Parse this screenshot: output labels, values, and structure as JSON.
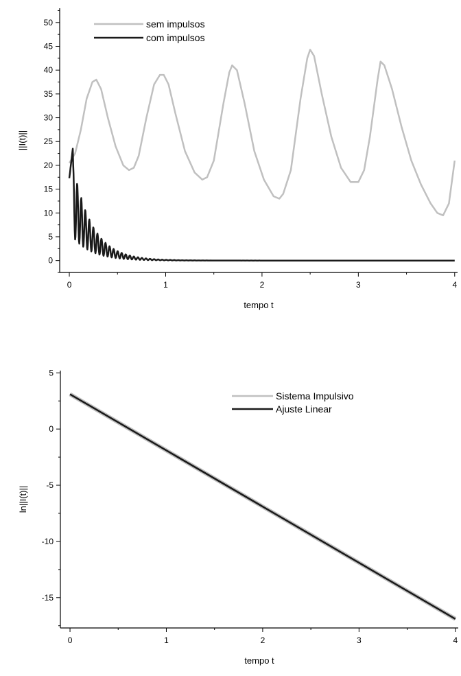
{
  "chart_data": [
    {
      "type": "line",
      "xlabel": "tempo t",
      "ylabel": "||I(t)||",
      "xlim": [
        -0.1,
        4.03
      ],
      "ylim": [
        -2.5,
        53
      ],
      "xticks": [
        "0",
        "1",
        "2",
        "3",
        "4"
      ],
      "yticks": [
        "0",
        "5",
        "10",
        "15",
        "20",
        "25",
        "30",
        "35",
        "40",
        "45",
        "50"
      ],
      "legend_position": "top-left",
      "series": [
        {
          "name": "sem impulsos",
          "color": "#c0c0c0",
          "x": [
            0,
            0.06,
            0.12,
            0.18,
            0.24,
            0.28,
            0.33,
            0.4,
            0.48,
            0.56,
            0.62,
            0.67,
            0.72,
            0.8,
            0.88,
            0.94,
            0.98,
            1.03,
            1.1,
            1.2,
            1.3,
            1.38,
            1.43,
            1.5,
            1.6,
            1.66,
            1.69,
            1.74,
            1.82,
            1.92,
            2.02,
            2.12,
            2.18,
            2.22,
            2.3,
            2.4,
            2.47,
            2.5,
            2.54,
            2.62,
            2.72,
            2.82,
            2.92,
            3.0,
            3.06,
            3.12,
            3.2,
            3.23,
            3.27,
            3.35,
            3.45,
            3.55,
            3.65,
            3.75,
            3.82,
            3.88,
            3.94,
            4.0
          ],
          "y": [
            20.5,
            22.5,
            27.5,
            34,
            37.5,
            38,
            36,
            30,
            24,
            20,
            19,
            19.5,
            22,
            30,
            37,
            39,
            39,
            37,
            31,
            23,
            18.5,
            17,
            17.5,
            21,
            33,
            39.5,
            41,
            40,
            33,
            23,
            17,
            13.5,
            13,
            14,
            19,
            34,
            42.5,
            44.3,
            43,
            35,
            26,
            19.5,
            16.5,
            16.5,
            19,
            26,
            38,
            41.8,
            41,
            36,
            28,
            21,
            16,
            12,
            10,
            9.5,
            12,
            21
          ]
        },
        {
          "name": "com impulsos",
          "color": "#1a1a1a",
          "oscillating": true,
          "initial_value": 17.3,
          "peak_value": 24.2,
          "decay_note": "damped oscillation decaying to 0 by t≈1.4",
          "x": [
            0,
            0.04,
            0.06,
            0.1,
            0.2,
            0.3,
            0.4,
            0.5,
            0.6,
            0.8,
            1.0,
            1.2,
            1.5,
            2.0,
            3.0,
            4.0
          ],
          "y": [
            17.3,
            24.2,
            15.5,
            17,
            9,
            5.5,
            3.3,
            2,
            1.2,
            0.5,
            0.2,
            0.05,
            0.02,
            0,
            0,
            0
          ]
        }
      ]
    },
    {
      "type": "line",
      "xlabel": "tempo t",
      "ylabel": "ln||I(t)||",
      "xlim": [
        -0.1,
        4.03
      ],
      "ylim": [
        -17.7,
        5.2
      ],
      "xticks": [
        "0",
        "1",
        "2",
        "3",
        "4"
      ],
      "yticks": [
        "5",
        "0",
        "-5",
        "-10",
        "-15"
      ],
      "legend_position": "top-right",
      "series": [
        {
          "name": "Sistema Impulsivo",
          "color": "#c0c0c0",
          "x": [
            0,
            4.0
          ],
          "y": [
            3.1,
            -16.9
          ]
        },
        {
          "name": "Ajuste Linear",
          "color": "#1a1a1a",
          "x": [
            0,
            4.0
          ],
          "y": [
            3.1,
            -16.9
          ]
        }
      ]
    }
  ]
}
